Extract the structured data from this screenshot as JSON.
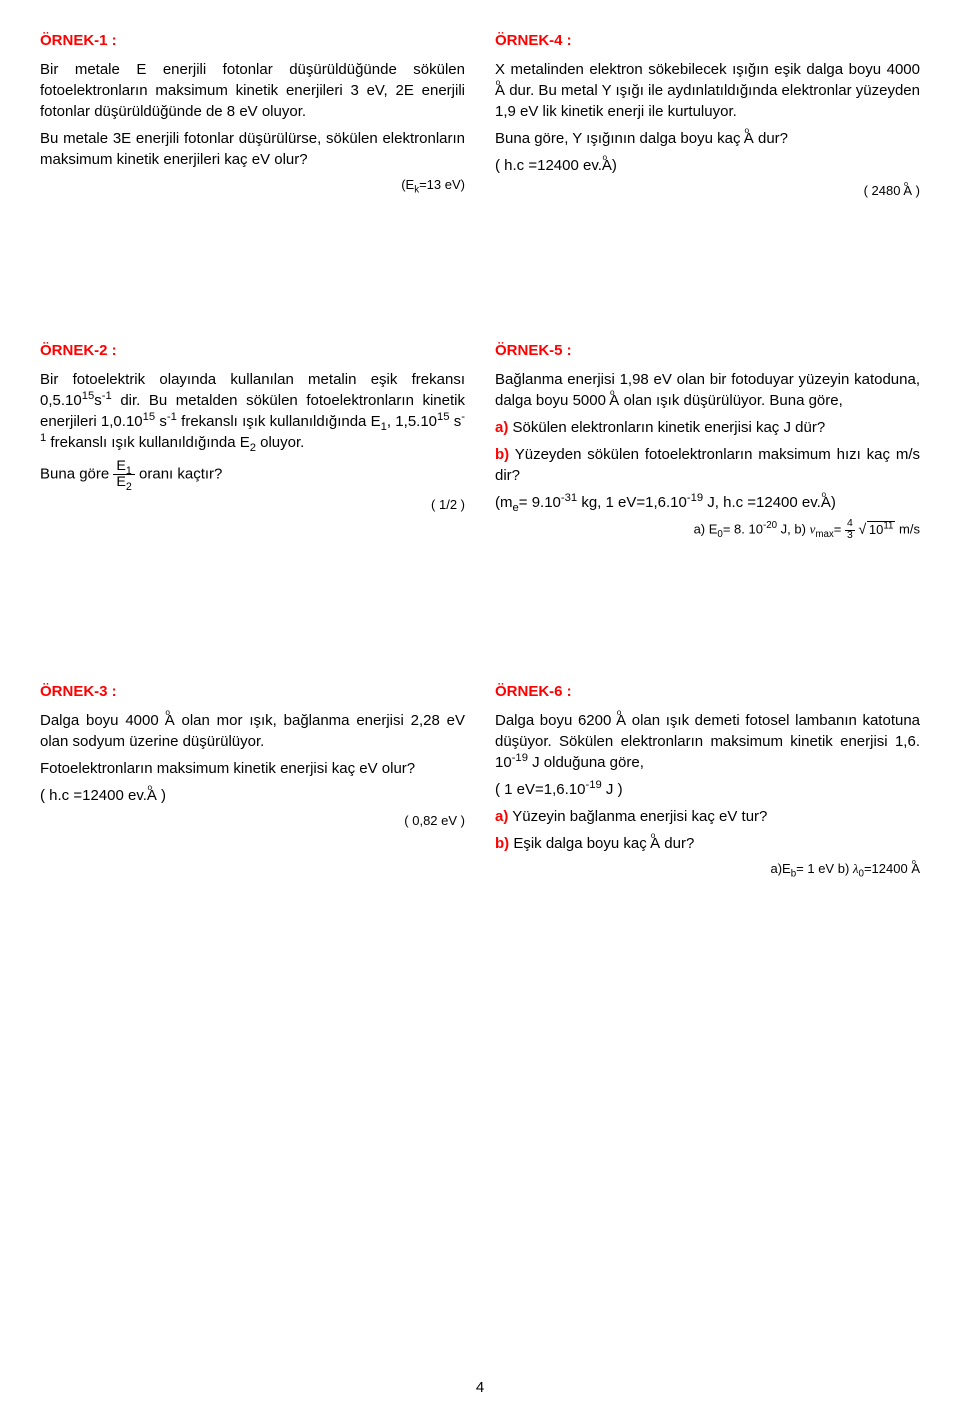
{
  "colors": {
    "accent": "#ff0000",
    "text": "#000000",
    "bg": "#ffffff"
  },
  "page_number": "4",
  "ex1": {
    "title": "ÖRNEK-1 :",
    "p1": "Bir metale E enerjili fotonlar düşürüldüğünde sökülen fotoelektronların maksimum kinetik enerjileri 3 eV, 2E enerjili fotonlar düşürüldüğünde de 8 eV oluyor.",
    "q": "Bu metale 3E enerjili fotonlar düşürülürse, sökülen elektronların maksimum kinetik enerjileri kaç eV olur?",
    "ans_prefix": "(E",
    "ans_sub": "k",
    "ans_suffix": "=13 eV)"
  },
  "ex4": {
    "title": "ÖRNEK-4 :",
    "p1a": "X metalinden elektron sökebilecek ışığın eşik dalga boyu 4000 ",
    "p1b": " dur. Bu metal Y ışığı ile aydınlatıldığında elektronlar yüzeyden 1,9 eV lik kinetik enerji ile kurtuluyor.",
    "q_a": "Buna göre, Y ışığının dalga boyu kaç ",
    "q_b": " dur?",
    "given_a": "( h.c =12400 ev.",
    "given_b": ")",
    "ans_a": "( 2480 ",
    "ans_b": " )"
  },
  "ex2": {
    "title": "ÖRNEK-2 :",
    "p1a": "Bir fotoelektrik olayında kullanılan metalin eşik frekansı 0,5.10",
    "p1b": "s",
    "p1c": " dir. Bu metalden sökülen fotoelektronların kinetik enerjileri 1,0.10",
    "p1d": " s",
    "p1e": " frekanslı ışık kullanıldığında E",
    "p1f": ", 1,5.10",
    "p1g": " s",
    "p1h": " frekanslı ışık kullanıldığında E",
    "p1i": " oluyor.",
    "q_a": "Buna göre ",
    "q_b": " oranı kaçtır?",
    "num_e1": "E",
    "den_e2": "E",
    "ans": "( 1/2 )"
  },
  "ex5": {
    "title": "ÖRNEK-5 :",
    "p1a": "Bağlanma enerjisi 1,98 eV olan bir fotoduyar yüzeyin katoduna, dalga boyu 5000 ",
    "p1b": " olan ışık düşürülüyor. Buna göre,",
    "a_label": "a)",
    "a_text": " Sökülen elektronların kinetik enerjisi kaç J dür?",
    "b_label": "b)",
    "b_text": " Yüzeyden sökülen fotoelektronların maksimum hızı kaç m/s dir?",
    "given_a": "(m",
    "given_b": "= 9.10",
    "given_c": " kg, 1 eV=1,6.10",
    "given_d": " J, h.c =12400 ev.",
    "given_e": ")",
    "ans_a": "a) E",
    "ans_b": "= 8. 10",
    "ans_c": " J, b) ",
    "ans_v": "v",
    "ans_vmax": "max",
    "ans_eq": "= ",
    "ans_frac_num": "4",
    "ans_frac_den": "3",
    "ans_sqrt": "10",
    "ans_sqrt_sup": "11",
    "ans_units": " m/s"
  },
  "ex3": {
    "title": "ÖRNEK-3 :",
    "p1a": "Dalga boyu 4000 ",
    "p1b": " olan mor ışık, bağlanma enerjisi 2,28 eV olan sodyum üzerine düşürülüyor.",
    "q": "Fotoelektronların maksimum kinetik enerjisi kaç eV olur?",
    "given_a": "( h.c =12400 ev.",
    "given_b": " )",
    "ans": "( 0,82 eV )"
  },
  "ex6": {
    "title": "ÖRNEK-6 :",
    "p1a": "Dalga boyu 6200 ",
    "p1b": " olan ışık demeti fotosel lambanın katotuna düşüyor. Sökülen elektronların maksimum kinetik enerjisi 1,6. 10",
    "p1c": " J olduğuna göre,",
    "given": "( 1 eV=1,6.10",
    "given_b": " J )",
    "a_label": "a)",
    "a_text": " Yüzeyin bağlanma enerjisi kaç eV tur?",
    "b_label": "b)",
    "b_text_a": " Eşik dalga boyu kaç ",
    "b_text_b": " dur?",
    "ans_a": "a)E",
    "ans_b": "= 1 eV  b) ",
    "ans_lambda": "λ",
    "ans_c": "=12400 "
  }
}
